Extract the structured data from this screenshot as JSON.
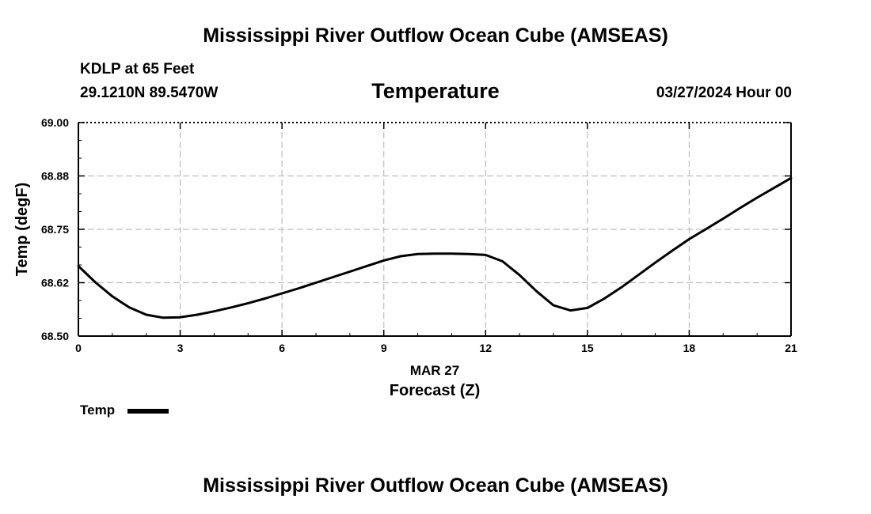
{
  "header": {
    "main_title": "Mississippi River Outflow Ocean Cube (AMSEAS)",
    "station": "KDLP at 65 Feet",
    "coordinates": "29.1210N  89.5470W",
    "subtitle": "Temperature",
    "datetime": "03/27/2024 Hour 00"
  },
  "footer": {
    "repeat_title": "Mississippi River Outflow Ocean Cube (AMSEAS)"
  },
  "chart_data": {
    "type": "line",
    "title": "Temperature",
    "xlabel": "Forecast (Z)",
    "xlabel_date": "MAR 27",
    "ylabel": "Temp (degF)",
    "xlim": [
      0,
      21
    ],
    "ylim": [
      68.5,
      69.0
    ],
    "xticks": [
      0,
      3,
      6,
      9,
      12,
      15,
      18,
      21
    ],
    "xtick_labels": [
      "0",
      "3",
      "6",
      "9",
      "12",
      "15",
      "18",
      "21"
    ],
    "yticks": [
      68.5,
      68.625,
      68.75,
      68.875,
      69.0
    ],
    "ytick_labels": [
      "68.50",
      "68.62",
      "68.75",
      "68.88",
      "69.00"
    ],
    "grid": true,
    "legend_position": "bottom-left",
    "series": [
      {
        "name": "Temp",
        "color": "#000000",
        "x": [
          0,
          0.5,
          1,
          1.5,
          2,
          2.5,
          3,
          3.5,
          4,
          4.5,
          5,
          5.5,
          6,
          6.5,
          7,
          7.5,
          8,
          8.5,
          9,
          9.5,
          10,
          10.5,
          11,
          11.5,
          12,
          12.5,
          13,
          13.5,
          14,
          14.5,
          15,
          15.5,
          16,
          16.5,
          17,
          17.5,
          18,
          18.5,
          19,
          19.5,
          20,
          20.5,
          21
        ],
        "values": [
          68.664,
          68.626,
          68.593,
          68.567,
          68.55,
          68.543,
          68.544,
          68.55,
          68.558,
          68.567,
          68.577,
          68.588,
          68.6,
          68.612,
          68.625,
          68.638,
          68.651,
          68.664,
          68.677,
          68.687,
          68.692,
          68.693,
          68.693,
          68.692,
          68.69,
          68.675,
          68.643,
          68.605,
          68.572,
          68.56,
          68.566,
          68.588,
          68.614,
          68.643,
          68.672,
          68.7,
          68.727,
          68.751,
          68.775,
          68.8,
          68.824,
          68.847,
          68.87
        ]
      }
    ]
  }
}
